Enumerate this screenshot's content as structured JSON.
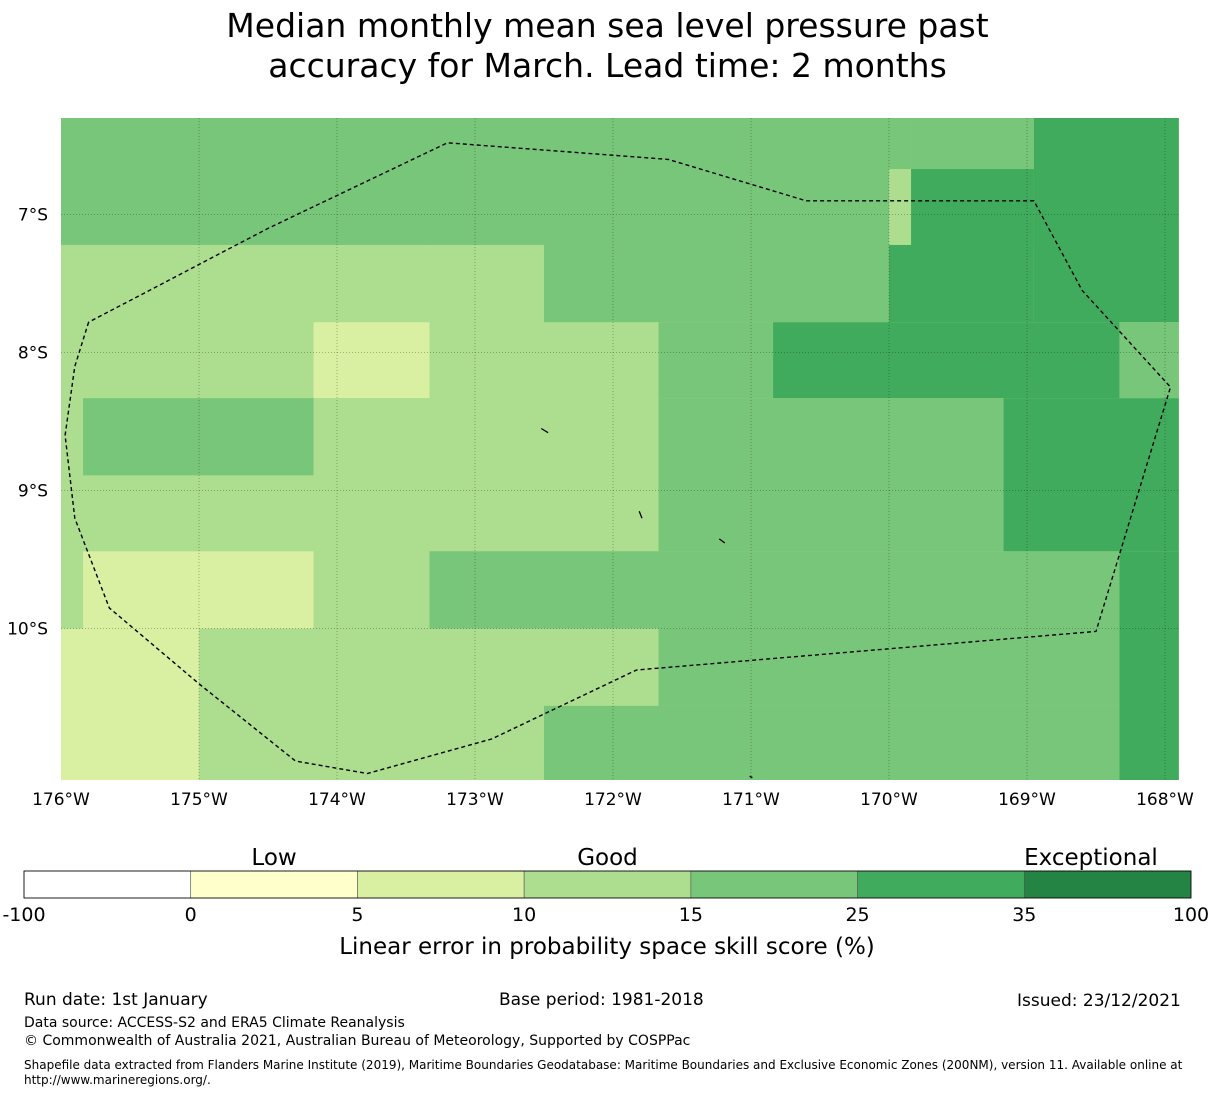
{
  "title": {
    "line1": "Median monthly mean sea level pressure past",
    "line2": "accuracy for March. Lead time: 2 months"
  },
  "chart_data": {
    "type": "heatmap",
    "title": "Median monthly mean sea level pressure past accuracy for March. Lead time: 2 months",
    "x_range_lon": [
      -176,
      -167.9
    ],
    "y_range_lat": [
      -6.3,
      -11.1
    ],
    "x_ticks": [
      {
        "value": -176,
        "label": "176°W"
      },
      {
        "value": -175,
        "label": "175°W"
      },
      {
        "value": -174,
        "label": "174°W"
      },
      {
        "value": -173,
        "label": "173°W"
      },
      {
        "value": -172,
        "label": "172°W"
      },
      {
        "value": -171,
        "label": "171°W"
      },
      {
        "value": -170,
        "label": "170°W"
      },
      {
        "value": -169,
        "label": "169°W"
      },
      {
        "value": -168,
        "label": "168°W"
      }
    ],
    "y_ticks": [
      {
        "value": -7,
        "label": "7°S"
      },
      {
        "value": -8,
        "label": "8°S"
      },
      {
        "value": -9,
        "label": "9°S"
      },
      {
        "value": -10,
        "label": "10°S"
      }
    ],
    "grid": true,
    "category_colors": {
      "0-5": "#ffffcc",
      "5-10": "#d9f0a3",
      "10-15": "#addd8e",
      "15-25": "#78c679",
      "25-35": "#41ab5d",
      "35-100": "#238443"
    },
    "cells": [
      {
        "lon": [
          -176,
          -173.33
        ],
        "lat": [
          -6.3,
          -7.22
        ],
        "category": "15-25"
      },
      {
        "lon": [
          -173.33,
          -169.84
        ],
        "lat": [
          -6.3,
          -6.67
        ],
        "category": "15-25"
      },
      {
        "lon": [
          -169.84,
          -168.95
        ],
        "lat": [
          -6.3,
          -7.22
        ],
        "category": "15-25"
      },
      {
        "lon": [
          -168.95,
          -167.9
        ],
        "lat": [
          -6.3,
          -7.78
        ],
        "category": "25-35"
      },
      {
        "lon": [
          -169.84,
          -168.95
        ],
        "lat": [
          -6.67,
          -7.22
        ],
        "category": "25-35"
      },
      {
        "lon": [
          -173.33,
          -170.0
        ],
        "lat": [
          -6.67,
          -7.22
        ],
        "category": "15-25"
      },
      {
        "lon": [
          -170.0,
          -168.95
        ],
        "lat": [
          -7.22,
          -7.78
        ],
        "category": "25-35"
      },
      {
        "lon": [
          -176,
          -172.5
        ],
        "lat": [
          -7.22,
          -7.78
        ],
        "category": "10-15"
      },
      {
        "lon": [
          -172.5,
          -170.0
        ],
        "lat": [
          -7.22,
          -7.78
        ],
        "category": "15-25"
      },
      {
        "lon": [
          -176,
          -174.17
        ],
        "lat": [
          -7.78,
          -8.33
        ],
        "category": "10-15"
      },
      {
        "lon": [
          -174.17,
          -173.33
        ],
        "lat": [
          -7.78,
          -8.33
        ],
        "category": "5-10"
      },
      {
        "lon": [
          -173.33,
          -171.67
        ],
        "lat": [
          -7.78,
          -8.33
        ],
        "category": "10-15"
      },
      {
        "lon": [
          -171.67,
          -170.84
        ],
        "lat": [
          -7.78,
          -8.33
        ],
        "category": "15-25"
      },
      {
        "lon": [
          -170.84,
          -168.33
        ],
        "lat": [
          -7.78,
          -8.33
        ],
        "category": "25-35"
      },
      {
        "lon": [
          -168.33,
          -167.9
        ],
        "lat": [
          -7.78,
          -8.33
        ],
        "category": "15-25"
      },
      {
        "lon": [
          -176,
          -175.84
        ],
        "lat": [
          -8.33,
          -8.89
        ],
        "category": "10-15"
      },
      {
        "lon": [
          -175.84,
          -174.17
        ],
        "lat": [
          -8.33,
          -8.89
        ],
        "category": "15-25"
      },
      {
        "lon": [
          -174.17,
          -171.67
        ],
        "lat": [
          -8.33,
          -9.44
        ],
        "category": "10-15"
      },
      {
        "lon": [
          -176,
          -174.17
        ],
        "lat": [
          -8.89,
          -9.44
        ],
        "category": "10-15"
      },
      {
        "lon": [
          -171.67,
          -169.17
        ],
        "lat": [
          -8.33,
          -9.44
        ],
        "category": "15-25"
      },
      {
        "lon": [
          -169.17,
          -167.9
        ],
        "lat": [
          -8.33,
          -9.44
        ],
        "category": "25-35"
      },
      {
        "lon": [
          -176,
          -175.84
        ],
        "lat": [
          -9.44,
          -10.0
        ],
        "category": "10-15"
      },
      {
        "lon": [
          -175.84,
          -174.17
        ],
        "lat": [
          -9.44,
          -10.0
        ],
        "category": "5-10"
      },
      {
        "lon": [
          -174.17,
          -173.33
        ],
        "lat": [
          -9.44,
          -10.0
        ],
        "category": "10-15"
      },
      {
        "lon": [
          -173.33,
          -168.33
        ],
        "lat": [
          -9.44,
          -10.0
        ],
        "category": "15-25"
      },
      {
        "lon": [
          -168.33,
          -167.9
        ],
        "lat": [
          -9.44,
          -11.1
        ],
        "category": "25-35"
      },
      {
        "lon": [
          -176,
          -175.0
        ],
        "lat": [
          -10.0,
          -11.1
        ],
        "category": "5-10"
      },
      {
        "lon": [
          -175.0,
          -171.67
        ],
        "lat": [
          -10.0,
          -10.56
        ],
        "category": "10-15"
      },
      {
        "lon": [
          -175.0,
          -172.5
        ],
        "lat": [
          -10.56,
          -11.1
        ],
        "category": "10-15"
      },
      {
        "lon": [
          -172.5,
          -168.33
        ],
        "lat": [
          -10.56,
          -11.1
        ],
        "category": "15-25"
      },
      {
        "lon": [
          -171.67,
          -168.33
        ],
        "lat": [
          -10.0,
          -10.56
        ],
        "category": "15-25"
      }
    ],
    "eez_boundary_lonlat": [
      [
        -175.8,
        -7.78
      ],
      [
        -175.9,
        -8.1
      ],
      [
        -175.97,
        -8.6
      ],
      [
        -175.9,
        -9.2
      ],
      [
        -175.65,
        -9.85
      ],
      [
        -175.0,
        -10.4
      ],
      [
        -174.3,
        -10.96
      ],
      [
        -173.78,
        -11.05
      ],
      [
        -172.88,
        -10.8
      ],
      [
        -171.83,
        -10.3
      ],
      [
        -168.5,
        -10.02
      ],
      [
        -167.96,
        -8.25
      ],
      [
        -168.6,
        -7.55
      ],
      [
        -168.95,
        -6.9
      ],
      [
        -170.6,
        -6.9
      ],
      [
        -171.6,
        -6.6
      ],
      [
        -173.2,
        -6.48
      ],
      [
        -174.5,
        -7.1
      ],
      [
        -175.8,
        -7.78
      ]
    ],
    "islands_lonlat": [
      [
        [
          -172.52,
          -8.55
        ],
        [
          -172.47,
          -8.58
        ]
      ],
      [
        [
          -171.81,
          -9.15
        ],
        [
          -171.79,
          -9.2
        ]
      ],
      [
        [
          -171.23,
          -9.35
        ],
        [
          -171.19,
          -9.38
        ]
      ],
      [
        [
          -171.01,
          -11.07
        ],
        [
          -170.99,
          -11.08
        ]
      ]
    ],
    "colorbar": {
      "boundaries": [
        -100,
        0,
        5,
        10,
        15,
        25,
        35,
        100
      ],
      "tick_labels": [
        "-100",
        "0",
        "5",
        "10",
        "15",
        "25",
        "35",
        "100"
      ],
      "colors": [
        "#ffffff",
        "#ffffcc",
        "#d9f0a3",
        "#addd8e",
        "#78c679",
        "#41ab5d",
        "#238443"
      ],
      "category_labels": [
        "Low",
        "Good",
        "Exceptional"
      ],
      "label": "Linear error in probability space skill score (%)"
    }
  },
  "footer": {
    "run_date": "Run date: 1st January",
    "base_period": "Base period: 1981-2018",
    "issued": "Issued: 23/12/2021",
    "data_source": "Data source: ACCESS-S2 and ERA5 Climate Reanalysis",
    "copyright": "© Commonwealth of Australia 2021, Australian Bureau of Meteorology, Supported by COSPPac",
    "shapefile_line1": "Shapefile data extracted from Flanders Marine Institute (2019), Maritime Boundaries Geodatabase: Maritime Boundaries and Exclusive Economic Zones (200NM), version 11. Available online at",
    "shapefile_line2": "http://www.marineregions.org/."
  }
}
